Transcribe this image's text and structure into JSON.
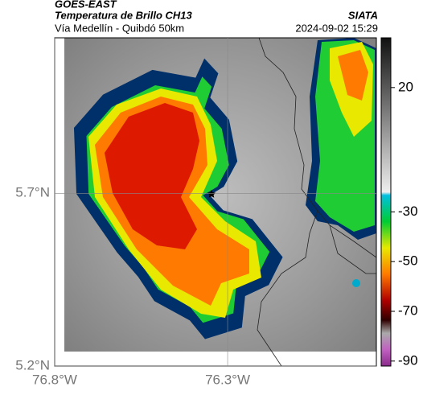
{
  "header": {
    "satellite": "GOES-EAST",
    "product": "Temperatura de Brillo CH13",
    "route": "Vía Medellín - Quibdó 50km",
    "source": "SIATA",
    "timestamp": "2024-09-02 15:29"
  },
  "map": {
    "xlim": [
      -76.8,
      -75.87
    ],
    "ylim": [
      5.2,
      6.15
    ],
    "xticks": [
      {
        "value": -76.8,
        "label": "76.8°W"
      },
      {
        "value": -76.3,
        "label": "76.3°W"
      }
    ],
    "yticks": [
      {
        "value": 5.7,
        "label": "5.7°N"
      },
      {
        "value": 5.2,
        "label": "5.2°N"
      }
    ],
    "grid": true,
    "colorbar": {
      "lim": [
        -92,
        40
      ],
      "ticks": [
        20,
        -30,
        -50,
        -70,
        -90
      ]
    }
  }
}
